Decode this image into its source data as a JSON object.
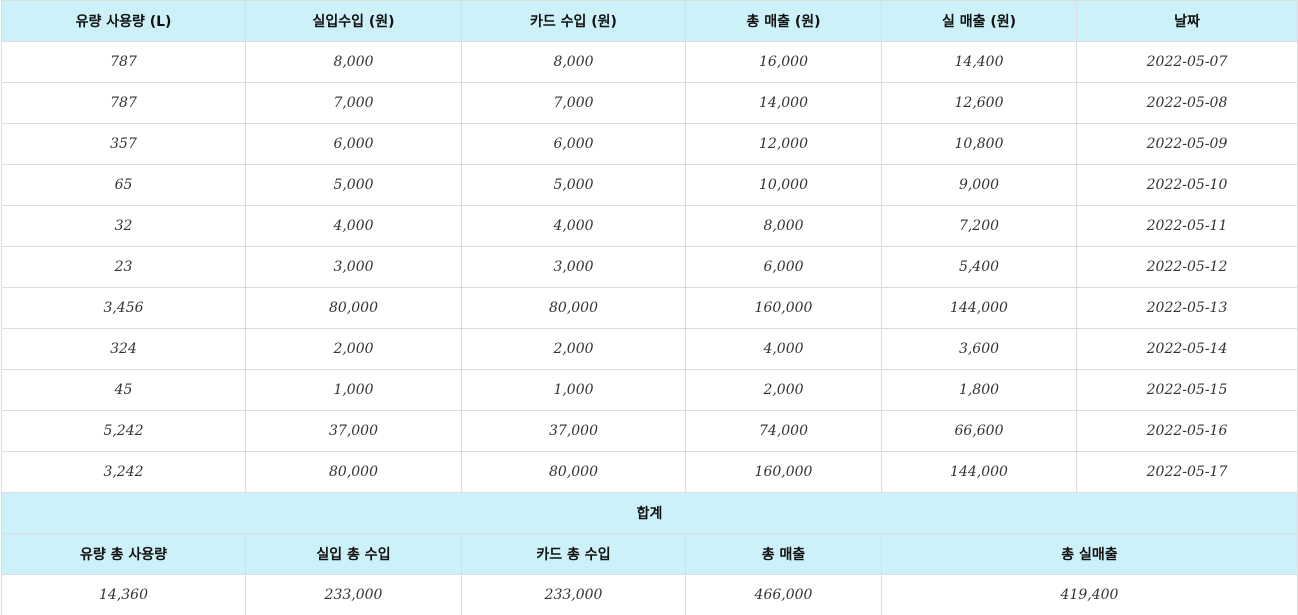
{
  "table": {
    "headers": [
      "유량 사용량 (L)",
      "실입수입 (원)",
      "카드 수입 (원)",
      "총 매출 (원)",
      "실 매출 (원)",
      "날짜"
    ],
    "rows": [
      [
        "787",
        "8,000",
        "8,000",
        "16,000",
        "14,400",
        "2022-05-07"
      ],
      [
        "787",
        "7,000",
        "7,000",
        "14,000",
        "12,600",
        "2022-05-08"
      ],
      [
        "357",
        "6,000",
        "6,000",
        "12,000",
        "10,800",
        "2022-05-09"
      ],
      [
        "65",
        "5,000",
        "5,000",
        "10,000",
        "9,000",
        "2022-05-10"
      ],
      [
        "32",
        "4,000",
        "4,000",
        "8,000",
        "7,200",
        "2022-05-11"
      ],
      [
        "23",
        "3,000",
        "3,000",
        "6,000",
        "5,400",
        "2022-05-12"
      ],
      [
        "3,456",
        "80,000",
        "80,000",
        "160,000",
        "144,000",
        "2022-05-13"
      ],
      [
        "324",
        "2,000",
        "2,000",
        "4,000",
        "3,600",
        "2022-05-14"
      ],
      [
        "45",
        "1,000",
        "1,000",
        "2,000",
        "1,800",
        "2022-05-15"
      ],
      [
        "5,242",
        "37,000",
        "37,000",
        "74,000",
        "66,600",
        "2022-05-16"
      ],
      [
        "3,242",
        "80,000",
        "80,000",
        "160,000",
        "144,000",
        "2022-05-17"
      ]
    ]
  },
  "summary": {
    "title": "합계",
    "headers": [
      "유량 총 사용량",
      "실입 총 수입",
      "카드 총 수입",
      "총 매출",
      "총 실매출"
    ],
    "values": [
      "14,360",
      "233,000",
      "233,000",
      "466,000",
      "419,400"
    ]
  },
  "colors": {
    "header_bg": "#cdf1f9",
    "border": "#dcdcdc"
  }
}
